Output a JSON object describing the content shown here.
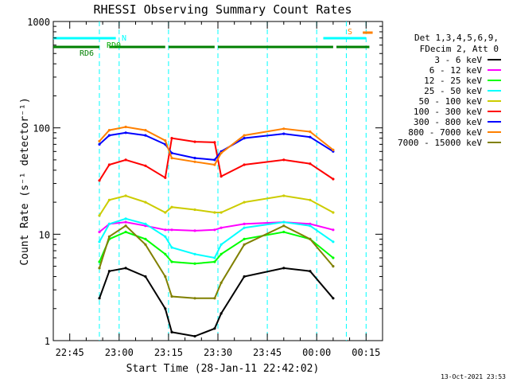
{
  "chart_data": {
    "type": "line",
    "title": "RHESSI Observing Summary Count Rates",
    "xlabel": "Start Time (28-Jan-11 22:42:02)",
    "ylabel": "Count Rate (s⁻¹ detector⁻¹)",
    "y_scale": "log",
    "ylim": [
      1,
      1000
    ],
    "xlim": [
      "2011-01-28 22:40",
      "2011-01-29 00:20"
    ],
    "x_ticks": [
      "22:45",
      "23:00",
      "23:15",
      "23:30",
      "23:45",
      "00:00",
      "00:15"
    ],
    "y_ticks": [
      "1",
      "10",
      "100",
      "1000"
    ],
    "grid": false,
    "legend_position": "right",
    "legend_header": [
      "Det 1,3,4,5,6,9,",
      "FDecim 2, Att 0"
    ],
    "annotations": [
      "RD0",
      "RD6",
      "N",
      "S"
    ],
    "footer_date": "13-Oct-2021 23:53",
    "background": "#ffffff",
    "axis_color": "#000000",
    "time_grid": [
      "22:54",
      "23:00",
      "23:15",
      "23:30",
      "23:45",
      "00:00",
      "00:09",
      "00:15"
    ],
    "series": [
      {
        "name": "3 - 6 keV",
        "color": "#000000",
        "values": [
          2.5,
          4.5,
          4.8,
          4.0,
          2.0,
          1.2,
          1.1,
          1.3,
          1.8,
          4.0,
          4.8,
          4.5,
          2.5
        ]
      },
      {
        "name": "6 - 12 keV",
        "color": "#ff00ff",
        "values": [
          10.5,
          12.5,
          13.0,
          12.0,
          11.0,
          11.0,
          10.8,
          11.0,
          11.5,
          12.5,
          13.0,
          12.5,
          11.0
        ]
      },
      {
        "name": "12 - 25 keV",
        "color": "#00ff00",
        "values": [
          5.5,
          9.0,
          10.5,
          9.0,
          6.5,
          5.5,
          5.3,
          5.5,
          6.5,
          9.0,
          10.5,
          9.0,
          6.0
        ]
      },
      {
        "name": "25 - 50 keV",
        "color": "#00ffff",
        "values": [
          8.5,
          12.5,
          14.0,
          12.5,
          9.5,
          7.5,
          6.5,
          6.0,
          8.0,
          11.5,
          13.0,
          12.0,
          8.5
        ]
      },
      {
        "name": "50 - 100 keV",
        "color": "#cccc00",
        "values": [
          15.0,
          21.0,
          23.0,
          20.0,
          16.0,
          18.0,
          17.0,
          16.0,
          16.0,
          20.0,
          23.0,
          21.0,
          16.0
        ]
      },
      {
        "name": "100 - 300 keV",
        "color": "#ff0000",
        "values": [
          32.0,
          45.0,
          50.0,
          44.0,
          34.0,
          80.0,
          74.0,
          73.0,
          35.0,
          45.0,
          50.0,
          46.0,
          33.0
        ]
      },
      {
        "name": "300 - 800 keV",
        "color": "#0000ff",
        "values": [
          70.0,
          85.0,
          90.0,
          85.0,
          70.0,
          58.0,
          52.0,
          50.0,
          60.0,
          80.0,
          88.0,
          82.0,
          60.0
        ]
      },
      {
        "name": "800 - 7000 keV",
        "color": "#ff8000",
        "values": [
          75.0,
          95.0,
          102.0,
          95.0,
          76.0,
          52.0,
          48.0,
          45.0,
          58.0,
          85.0,
          98.0,
          92.0,
          62.0
        ]
      },
      {
        "name": "7000 - 15000 keV",
        "color": "#808000",
        "values": [
          4.8,
          9.5,
          12.0,
          8.0,
          4.0,
          2.6,
          2.5,
          2.5,
          3.5,
          8.0,
          12.0,
          9.0,
          5.0
        ]
      }
    ],
    "x": [
      "22:54",
      "22:57",
      "23:02",
      "23:08",
      "23:14",
      "23:16",
      "23:23",
      "23:29",
      "23:31",
      "23:38",
      "23:50",
      "23:58",
      "00:05"
    ],
    "flag_bars": [
      {
        "name": "RD0",
        "color": "#00ffff",
        "segments": [
          [
            "22:40",
            "22:59"
          ],
          [
            "00:02",
            "00:15"
          ]
        ]
      },
      {
        "name": "RD6",
        "color": "#008000",
        "segments": [
          [
            "22:40",
            "22:54"
          ],
          [
            "22:57",
            "23:14"
          ],
          [
            "23:15",
            "23:29"
          ],
          [
            "23:30",
            "00:05"
          ],
          [
            "00:06",
            "00:16"
          ]
        ]
      },
      {
        "name": "S",
        "color": "#ff8000",
        "segments": [
          [
            "00:14",
            "00:17"
          ]
        ]
      }
    ]
  }
}
